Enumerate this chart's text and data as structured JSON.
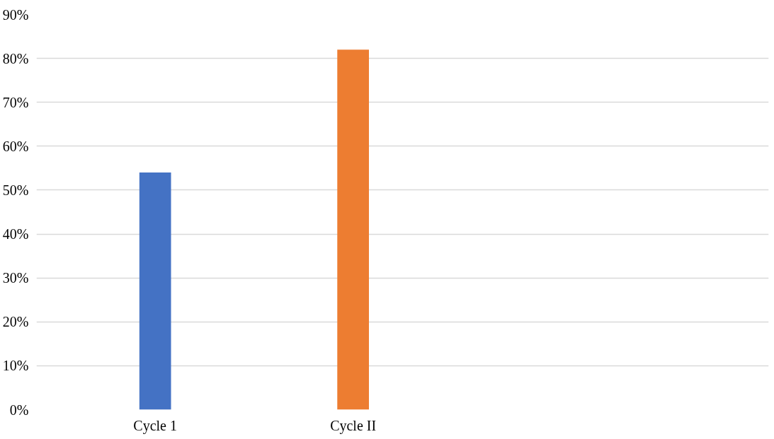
{
  "chart_data": {
    "type": "bar",
    "categories": [
      "Cycle 1",
      "Cycle II"
    ],
    "values": [
      54,
      82
    ],
    "colors": [
      "#4472c4",
      "#ed7d31"
    ],
    "ylim": [
      0,
      90
    ],
    "yticks": [
      {
        "value": 0,
        "label": "0%"
      },
      {
        "value": 10,
        "label": "10%"
      },
      {
        "value": 20,
        "label": "20%"
      },
      {
        "value": 30,
        "label": "30%"
      },
      {
        "value": 40,
        "label": "40%"
      },
      {
        "value": 50,
        "label": "50%"
      },
      {
        "value": 60,
        "label": "60%"
      },
      {
        "value": 70,
        "label": "70%"
      },
      {
        "value": 80,
        "label": "80%"
      },
      {
        "value": 90,
        "label": "90%"
      }
    ],
    "grid": "y"
  }
}
